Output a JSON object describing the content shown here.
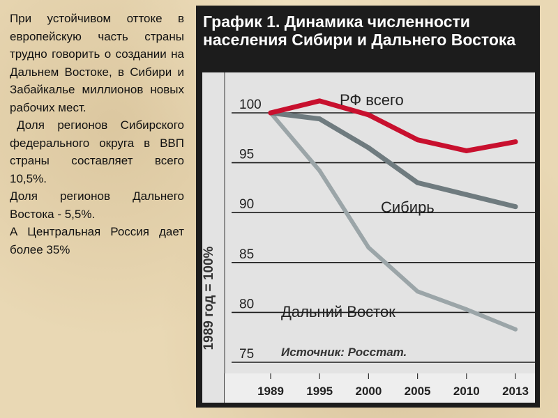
{
  "sidebar_text": {
    "paragraph1": "При устойчивом оттоке в европейскую часть страны трудно говорить о создании на Дальнем Востоке, в Сибири и Забайкалье миллионов новых рабочих мест.",
    "paragraph2": "Доля регионов Сибирского федерального округа в ВВП страны составляет всего 10,5%.",
    "paragraph3": "Доля регионов Дальнего Востока - 5,5%.",
    "paragraph4": "А Центральная Россия дает более 35%"
  },
  "colors": {
    "panel": "#1c1c1c",
    "plot_bg": "#e3e3e3",
    "axis_bg": "#eeeeee",
    "rf": "#c8102e",
    "siberia": "#6f7b7f",
    "far_east": "#9ba5a8"
  },
  "chart_data": {
    "type": "line",
    "title": "График 1. Динамика численности населения Сибири и Дальнего Востока",
    "ylabel": "1989 год = 100%",
    "xlabel": "",
    "x": [
      "1989",
      "1995",
      "2000",
      "2005",
      "2010",
      "2013"
    ],
    "ylim": [
      75,
      100
    ],
    "yticks": [
      75,
      80,
      85,
      90,
      95,
      100
    ],
    "grid": true,
    "source_note": "Источник: Росстат.",
    "series": [
      {
        "name": "РФ всего",
        "color": "#c8102e",
        "values": [
          100,
          101.2,
          99.8,
          97.3,
          96.2,
          97.1
        ]
      },
      {
        "name": "Сибирь",
        "color": "#6f7b7f",
        "values": [
          100,
          99.4,
          96.5,
          93.0,
          91.8,
          90.6
        ]
      },
      {
        "name": "Дальний Восток",
        "color": "#9ba5a8",
        "values": [
          100,
          94.2,
          86.5,
          82.1,
          80.3,
          78.3
        ]
      }
    ]
  }
}
